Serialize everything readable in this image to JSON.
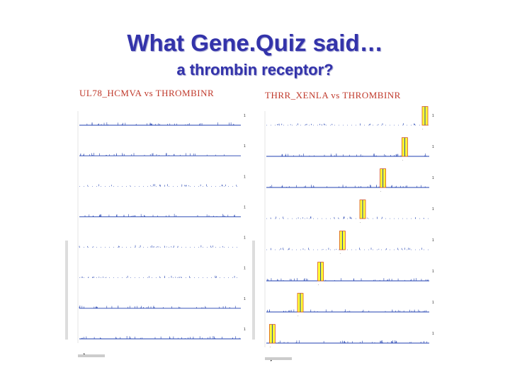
{
  "slide": {
    "title": "What Gene.Quiz said…",
    "subtitle": "a thrombin receptor?"
  },
  "left_panel": {
    "title": "UL78_HCMVA vs THROMBINR",
    "rows": 8,
    "highlighted_rows": []
  },
  "right_panel": {
    "title": "THRR_XENLA vs THROMBINR",
    "rows": 8,
    "highlighted_rows": [
      {
        "row": 0,
        "position": 1.0
      },
      {
        "row": 1,
        "position": 0.87
      },
      {
        "row": 2,
        "position": 0.73
      },
      {
        "row": 3,
        "position": 0.6
      },
      {
        "row": 4,
        "position": 0.47
      },
      {
        "row": 5,
        "position": 0.33
      },
      {
        "row": 6,
        "position": 0.2
      },
      {
        "row": 7,
        "position": 0.02
      }
    ]
  },
  "colors": {
    "title": "#3333aa",
    "panel_title": "#c0392b",
    "trace": "#1f3fb0",
    "highlight": "#ffff33",
    "highlight_border": "#d9531e"
  }
}
